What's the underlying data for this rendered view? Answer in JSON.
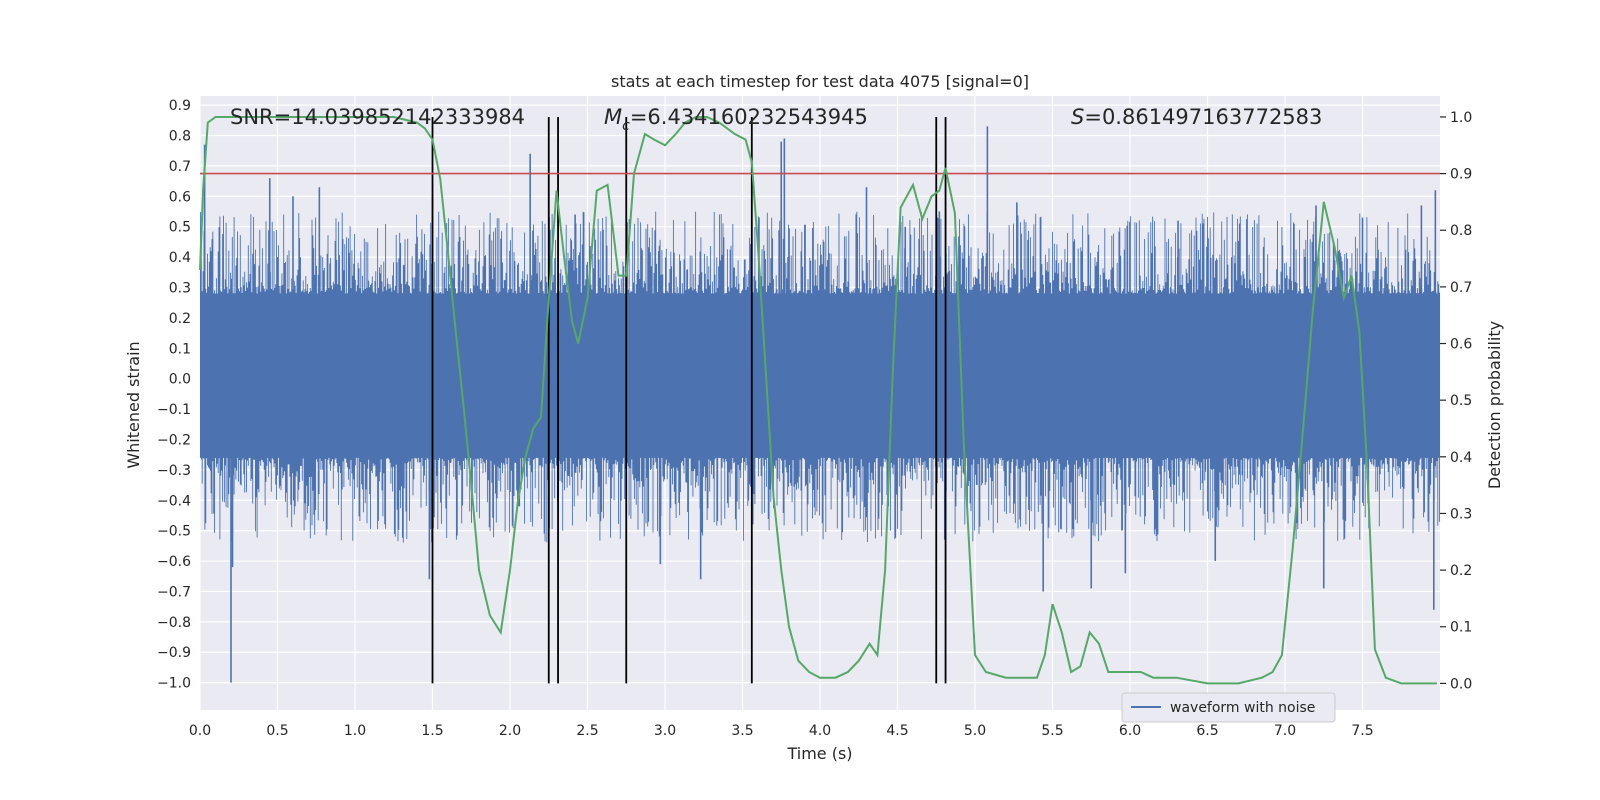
{
  "chart_data": {
    "type": "line",
    "title": "stats at each timestep for test data 4075 [signal=0]",
    "xlabel": "Time (s)",
    "ylabel_left": "Whitened strain",
    "ylabel_right": "Detection probability",
    "xlim": [
      0,
      8.0
    ],
    "ylim_left": [
      -1.09,
      0.93
    ],
    "ylim_right": [
      -0.047,
      1.037
    ],
    "grid": true,
    "x_ticks": [
      0.0,
      0.5,
      1.0,
      1.5,
      2.0,
      2.5,
      3.0,
      3.5,
      4.0,
      4.5,
      5.0,
      5.5,
      6.0,
      6.5,
      7.0,
      7.5
    ],
    "x_tick_labels": [
      "0.0",
      "0.5",
      "1.0",
      "1.5",
      "2.0",
      "2.5",
      "3.0",
      "3.5",
      "4.0",
      "4.5",
      "5.0",
      "5.5",
      "6.0",
      "6.5",
      "7.0",
      "7.5"
    ],
    "y_left_ticks": [
      0.9,
      0.8,
      0.7,
      0.6,
      0.5,
      0.4,
      0.3,
      0.2,
      0.1,
      0.0,
      -0.1,
      -0.2,
      -0.3,
      -0.4,
      -0.5,
      -0.6,
      -0.7,
      -0.8,
      -0.9,
      -1.0
    ],
    "y_left_tick_labels": [
      "0.9",
      "0.8",
      "0.7",
      "0.6",
      "0.5",
      "0.4",
      "0.3",
      "0.2",
      "0.1",
      "0.0",
      "−0.1",
      "−0.2",
      "−0.3",
      "−0.4",
      "−0.5",
      "−0.6",
      "−0.7",
      "−0.8",
      "−0.9",
      "−1.0"
    ],
    "y_right_ticks": [
      1.0,
      0.9,
      0.8,
      0.7,
      0.6,
      0.5,
      0.4,
      0.3,
      0.2,
      0.1,
      0.0
    ],
    "y_right_tick_labels": [
      "1.0",
      "0.9",
      "0.8",
      "0.7",
      "0.6",
      "0.5",
      "0.4",
      "0.3",
      "0.2",
      "0.1",
      "0.0"
    ],
    "annotations": {
      "snr": "SNR=14.039852142333984",
      "mc_symbol": "M",
      "mc_sub": "c",
      "mc_value": "=6.434160232543945",
      "s_symbol": "S",
      "s_value": "=0.861497163772583"
    },
    "legend": {
      "label": "waveform with noise",
      "position": "lower right"
    },
    "threshold_right": 0.9,
    "vertical_lines_x": [
      1.5,
      2.25,
      2.31,
      2.75,
      3.56,
      4.75,
      4.81
    ],
    "waveform": {
      "name": "waveform with noise",
      "duration_s": 8.0,
      "core_range": [
        -0.26,
        0.28
      ],
      "spikes": [
        [
          0.03,
          0.77
        ],
        [
          0.08,
          0.46
        ],
        [
          0.2,
          -1.0
        ],
        [
          0.21,
          -0.62
        ],
        [
          0.45,
          0.66
        ],
        [
          0.6,
          0.6
        ],
        [
          0.77,
          0.63
        ],
        [
          1.5,
          0.6
        ],
        [
          1.48,
          -0.66
        ],
        [
          2.13,
          0.74
        ],
        [
          2.06,
          -0.42
        ],
        [
          2.42,
          0.54
        ],
        [
          2.6,
          0.49
        ],
        [
          2.97,
          -0.61
        ],
        [
          3.23,
          -0.66
        ],
        [
          3.75,
          0.78
        ],
        [
          3.77,
          0.79
        ],
        [
          4.3,
          0.63
        ],
        [
          4.55,
          0.5
        ],
        [
          4.77,
          0.55
        ],
        [
          5.08,
          0.83
        ],
        [
          5.27,
          0.58
        ],
        [
          5.44,
          -0.7
        ],
        [
          5.75,
          -0.69
        ],
        [
          5.97,
          -0.64
        ],
        [
          6.31,
          0.52
        ],
        [
          6.55,
          -0.6
        ],
        [
          7.2,
          0.57
        ],
        [
          7.25,
          -0.69
        ],
        [
          7.5,
          0.53
        ],
        [
          7.88,
          0.57
        ],
        [
          7.97,
          0.62
        ],
        [
          7.96,
          -0.76
        ]
      ]
    },
    "series": [
      {
        "name": "detection probability",
        "axis": "right",
        "color": "#55a868",
        "x": [
          0.0,
          0.02,
          0.05,
          0.1,
          0.25,
          0.5,
          1.0,
          1.25,
          1.4,
          1.45,
          1.5,
          1.55,
          1.6,
          1.65,
          1.7,
          1.75,
          1.8,
          1.87,
          1.94,
          2.0,
          2.05,
          2.1,
          2.15,
          2.2,
          2.25,
          2.3,
          2.35,
          2.4,
          2.44,
          2.5,
          2.56,
          2.63,
          2.7,
          2.75,
          2.8,
          2.87,
          2.93,
          3.0,
          3.07,
          3.13,
          3.2,
          3.27,
          3.35,
          3.45,
          3.52,
          3.56,
          3.6,
          3.65,
          3.7,
          3.75,
          3.8,
          3.86,
          3.93,
          4.0,
          4.1,
          4.18,
          4.25,
          4.32,
          4.37,
          4.42,
          4.47,
          4.52,
          4.6,
          4.66,
          4.72,
          4.77,
          4.81,
          4.87,
          4.93,
          5.0,
          5.07,
          5.2,
          5.3,
          5.4,
          5.45,
          5.5,
          5.56,
          5.62,
          5.68,
          5.74,
          5.8,
          5.86,
          5.93,
          6.0,
          6.07,
          6.15,
          6.3,
          6.5,
          6.7,
          6.85,
          6.92,
          6.98,
          7.05,
          7.12,
          7.18,
          7.25,
          7.32,
          7.38,
          7.43,
          7.48,
          7.53,
          7.58,
          7.65,
          7.75,
          7.9,
          7.98
        ],
        "values": [
          0.73,
          0.87,
          0.99,
          1.0,
          1.0,
          1.0,
          1.0,
          1.0,
          0.99,
          0.98,
          0.96,
          0.89,
          0.76,
          0.62,
          0.49,
          0.35,
          0.2,
          0.12,
          0.09,
          0.2,
          0.32,
          0.4,
          0.45,
          0.47,
          0.68,
          0.87,
          0.75,
          0.64,
          0.6,
          0.68,
          0.87,
          0.88,
          0.72,
          0.72,
          0.9,
          0.97,
          0.96,
          0.95,
          0.97,
          0.99,
          1.0,
          1.0,
          0.99,
          0.97,
          0.96,
          0.92,
          0.77,
          0.55,
          0.33,
          0.2,
          0.1,
          0.04,
          0.02,
          0.01,
          0.01,
          0.02,
          0.04,
          0.07,
          0.05,
          0.2,
          0.55,
          0.84,
          0.88,
          0.82,
          0.86,
          0.87,
          0.91,
          0.83,
          0.41,
          0.05,
          0.02,
          0.01,
          0.01,
          0.01,
          0.05,
          0.14,
          0.09,
          0.02,
          0.03,
          0.09,
          0.07,
          0.02,
          0.02,
          0.02,
          0.02,
          0.01,
          0.01,
          0.0,
          0.0,
          0.01,
          0.02,
          0.05,
          0.24,
          0.46,
          0.66,
          0.85,
          0.77,
          0.68,
          0.72,
          0.62,
          0.38,
          0.06,
          0.01,
          0.0,
          0.0,
          0.0
        ]
      }
    ],
    "colors": {
      "waveform": "#4c72b0",
      "probability": "#55a868",
      "threshold": "#c44e52",
      "vlines": "#000000",
      "background": "#eaeaf2",
      "grid": "#ffffff"
    }
  }
}
